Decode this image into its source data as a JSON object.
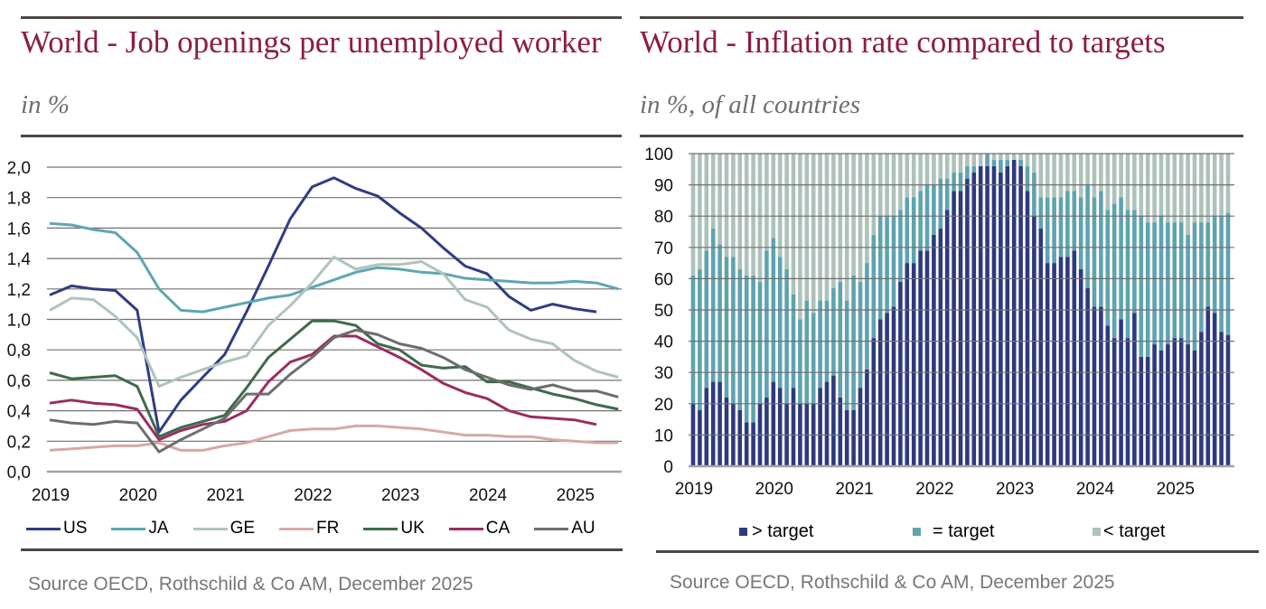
{
  "chart_data": [
    {
      "type": "line",
      "title": "World - Job openings per unemployed worker",
      "subtitle": "in %",
      "source": "Source OECD, Rothschild & Co AM, December 2025",
      "xlabel": "",
      "ylabel": "",
      "frequency": "quarterly",
      "start_period": "2019-Q1",
      "x_tick_labels": [
        "2019",
        "2020",
        "2021",
        "2022",
        "2023",
        "2024",
        "2025"
      ],
      "y_tick_labels": [
        "0,0",
        "0,2",
        "0,4",
        "0,6",
        "0,8",
        "1,0",
        "1,2",
        "1,4",
        "1,6",
        "1,8",
        "2,0"
      ],
      "ylim": [
        0,
        2.0
      ],
      "ytick_step": 0.2,
      "grid": true,
      "legend_position": "bottom",
      "series": [
        {
          "name": "US",
          "color": "#2f3c83",
          "values": [
            1.16,
            1.22,
            1.2,
            1.19,
            1.06,
            0.26,
            0.47,
            0.62,
            0.77,
            1.05,
            1.35,
            1.66,
            1.87,
            1.93,
            1.86,
            1.81,
            1.7,
            1.6,
            1.47,
            1.35,
            1.3,
            1.15,
            1.06,
            1.1,
            1.07,
            1.05
          ]
        },
        {
          "name": "JA",
          "color": "#5ea6b1",
          "values": [
            1.63,
            1.62,
            1.59,
            1.57,
            1.44,
            1.2,
            1.06,
            1.05,
            1.08,
            1.11,
            1.14,
            1.16,
            1.21,
            1.26,
            1.31,
            1.34,
            1.33,
            1.31,
            1.3,
            1.27,
            1.26,
            1.25,
            1.24,
            1.24,
            1.25,
            1.24,
            1.2
          ]
        },
        {
          "name": "GE",
          "color": "#aec4bc",
          "values": [
            1.06,
            1.14,
            1.13,
            1.02,
            0.88,
            0.56,
            0.62,
            0.67,
            0.72,
            0.76,
            0.96,
            1.09,
            1.24,
            1.41,
            1.33,
            1.36,
            1.36,
            1.38,
            1.3,
            1.13,
            1.08,
            0.93,
            0.87,
            0.84,
            0.73,
            0.66,
            0.62
          ]
        },
        {
          "name": "FR",
          "color": "#d5a9a5",
          "values": [
            0.14,
            0.15,
            0.16,
            0.17,
            0.17,
            0.19,
            0.14,
            0.14,
            0.17,
            0.19,
            0.23,
            0.27,
            0.28,
            0.28,
            0.3,
            0.3,
            0.29,
            0.28,
            0.26,
            0.24,
            0.24,
            0.23,
            0.23,
            0.21,
            0.2,
            0.19,
            0.19
          ]
        },
        {
          "name": "UK",
          "color": "#3d6b4a",
          "values": [
            0.65,
            0.61,
            0.62,
            0.63,
            0.56,
            0.23,
            0.29,
            0.33,
            0.37,
            0.55,
            0.75,
            0.87,
            0.99,
            0.99,
            0.96,
            0.84,
            0.8,
            0.7,
            0.68,
            0.69,
            0.59,
            0.59,
            0.55,
            0.51,
            0.48,
            0.44,
            0.41
          ]
        },
        {
          "name": "CA",
          "color": "#9a2d5f",
          "values": [
            0.45,
            0.47,
            0.45,
            0.44,
            0.41,
            0.21,
            0.27,
            0.31,
            0.33,
            0.4,
            0.59,
            0.72,
            0.77,
            0.89,
            0.89,
            0.82,
            0.75,
            0.67,
            0.58,
            0.52,
            0.48,
            0.4,
            0.36,
            0.35,
            0.34,
            0.31
          ]
        },
        {
          "name": "AU",
          "color": "#6d6d6d",
          "values": [
            0.34,
            0.32,
            0.31,
            0.33,
            0.32,
            0.13,
            0.21,
            0.28,
            0.35,
            0.51,
            0.51,
            0.64,
            0.75,
            0.88,
            0.93,
            0.9,
            0.84,
            0.81,
            0.75,
            0.67,
            0.62,
            0.57,
            0.54,
            0.57,
            0.53,
            0.53,
            0.49
          ]
        }
      ]
    },
    {
      "type": "bar",
      "stacked": true,
      "title": "World - Inflation rate compared to targets",
      "subtitle": "in %, of all countries",
      "source": "Source OECD, Rothschild & Co AM, December 2025",
      "xlabel": "",
      "ylabel": "",
      "frequency": "monthly",
      "start_period": "2019-01",
      "x_tick_labels": [
        "2019",
        "2020",
        "2021",
        "2022",
        "2023",
        "2024",
        "2025"
      ],
      "y_tick_labels": [
        "0",
        "10",
        "20",
        "30",
        "40",
        "50",
        "60",
        "70",
        "80",
        "90",
        "100"
      ],
      "ylim": [
        0,
        100
      ],
      "ytick_step": 10,
      "grid": true,
      "legend_position": "bottom",
      "series": [
        {
          "name": "> target",
          "key": "above-target",
          "color": "#2e3a7e",
          "values": [
            20,
            18,
            25,
            27,
            27,
            22,
            20,
            18,
            14,
            14,
            20,
            22,
            27,
            25,
            20,
            25,
            20,
            20,
            20,
            25,
            27,
            29,
            22,
            18,
            18,
            25,
            31,
            41,
            47,
            49,
            51,
            59,
            65,
            65,
            69,
            69,
            74,
            76,
            82,
            88,
            88,
            92,
            94,
            96,
            96,
            96,
            94,
            96,
            98,
            96,
            88,
            80,
            76,
            65,
            65,
            67,
            67,
            69,
            63,
            57,
            51,
            51,
            45,
            41,
            47,
            41,
            49,
            35,
            35,
            39,
            37,
            39,
            41,
            41,
            39,
            37,
            43,
            51,
            49,
            43,
            42
          ]
        },
        {
          "name": "= target",
          "key": "at-target",
          "color": "#5fa3af",
          "values": [
            41,
            45,
            44,
            49,
            44,
            45,
            47,
            45,
            47,
            47,
            39,
            47,
            46,
            42,
            43,
            30,
            27,
            33,
            29,
            28,
            26,
            28,
            37,
            35,
            43,
            34,
            34,
            33,
            33,
            31,
            29,
            23,
            21,
            21,
            19,
            21,
            16,
            16,
            10,
            6,
            6,
            4,
            2,
            0,
            4,
            2,
            4,
            2,
            0,
            2,
            8,
            14,
            10,
            21,
            21,
            19,
            21,
            19,
            23,
            33,
            35,
            37,
            37,
            43,
            39,
            41,
            33,
            45,
            43,
            39,
            43,
            39,
            37,
            37,
            35,
            41,
            35,
            27,
            31,
            37,
            39
          ]
        },
        {
          "name": "< target",
          "key": "below-target",
          "color": "#adc2ba",
          "values": [
            39,
            37,
            31,
            24,
            29,
            33,
            33,
            37,
            39,
            39,
            41,
            31,
            27,
            33,
            37,
            45,
            53,
            47,
            51,
            47,
            47,
            43,
            41,
            47,
            39,
            41,
            35,
            26,
            20,
            20,
            20,
            18,
            14,
            14,
            12,
            10,
            10,
            8,
            8,
            6,
            6,
            4,
            4,
            4,
            0,
            2,
            2,
            2,
            2,
            2,
            4,
            6,
            14,
            14,
            14,
            14,
            12,
            12,
            14,
            10,
            14,
            12,
            18,
            16,
            14,
            18,
            18,
            20,
            22,
            22,
            20,
            22,
            22,
            22,
            26,
            22,
            22,
            22,
            20,
            20,
            19
          ]
        }
      ]
    }
  ]
}
